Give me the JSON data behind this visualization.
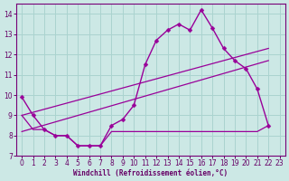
{
  "bg_color": "#cce8e5",
  "grid_color": "#aad3cf",
  "line_color": "#990099",
  "xlabel": "Windchill (Refroidissement éolien,°C)",
  "xlim_min": -0.5,
  "xlim_max": 23.5,
  "ylim_min": 7,
  "ylim_max": 14.5,
  "yticks": [
    7,
    8,
    9,
    10,
    11,
    12,
    13,
    14
  ],
  "xticks": [
    0,
    1,
    2,
    3,
    4,
    5,
    6,
    7,
    8,
    9,
    10,
    11,
    12,
    13,
    14,
    15,
    16,
    17,
    18,
    19,
    20,
    21,
    22,
    23
  ],
  "curve_x": [
    0,
    1,
    2,
    3,
    4,
    5,
    6,
    7,
    8,
    9,
    10,
    11,
    12,
    13,
    14,
    15,
    16,
    17,
    18,
    19,
    20,
    21,
    22
  ],
  "curve_y": [
    9.9,
    9.0,
    8.3,
    8.0,
    8.0,
    7.5,
    7.5,
    7.5,
    8.5,
    8.8,
    9.5,
    11.5,
    12.7,
    13.2,
    13.5,
    13.2,
    14.2,
    13.3,
    12.3,
    11.7,
    11.3,
    10.3,
    8.5
  ],
  "flat_x": [
    0,
    1,
    2,
    3,
    4,
    5,
    6,
    7,
    8,
    9,
    10,
    11,
    12,
    13,
    14,
    15,
    16,
    17,
    18,
    19,
    20,
    21,
    22
  ],
  "flat_y": [
    9.0,
    8.3,
    8.3,
    8.0,
    8.0,
    7.5,
    7.5,
    7.5,
    8.2,
    8.2,
    8.2,
    8.2,
    8.2,
    8.2,
    8.2,
    8.2,
    8.2,
    8.2,
    8.2,
    8.2,
    8.2,
    8.2,
    8.5
  ],
  "trend1_x": [
    0,
    22
  ],
  "trend1_y": [
    9.0,
    12.3
  ],
  "trend2_x": [
    0,
    22
  ],
  "trend2_y": [
    8.2,
    11.7
  ]
}
